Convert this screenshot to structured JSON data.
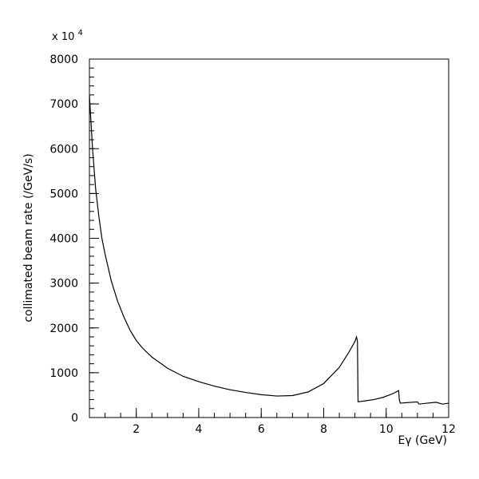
{
  "chart_data": {
    "type": "line",
    "title": "",
    "xlabel": "Eγ (GeV)",
    "ylabel": "collimated beam rate (/GeV/s)",
    "y_multiplier": "x 10",
    "y_multiplier_exponent": "4",
    "xlim": [
      0.5,
      12
    ],
    "ylim": [
      0,
      8000
    ],
    "grid": false,
    "x_ticks": [
      2,
      4,
      6,
      8,
      10,
      12
    ],
    "y_ticks": [
      0,
      1000,
      2000,
      3000,
      4000,
      5000,
      6000,
      7000,
      8000
    ],
    "series": [
      {
        "x": [
          0.5,
          0.6,
          0.7,
          0.8,
          0.9,
          1.0,
          1.2,
          1.4,
          1.6,
          1.8,
          2.0,
          2.2,
          2.5,
          3.0,
          3.5,
          4.0,
          4.5,
          5.0,
          5.5,
          6.0,
          6.5,
          7.0,
          7.5,
          8.0,
          8.5,
          8.8,
          9.0,
          9.05,
          9.08,
          9.1,
          9.3,
          9.6,
          9.9,
          10.2,
          10.4,
          10.42,
          10.45,
          10.8,
          11.0,
          11.05,
          11.3,
          11.6,
          11.8,
          12.0
        ],
        "y": [
          7200,
          6000,
          5100,
          4500,
          4000,
          3650,
          3050,
          2600,
          2250,
          1950,
          1720,
          1550,
          1350,
          1100,
          920,
          800,
          700,
          620,
          560,
          510,
          480,
          490,
          570,
          760,
          1120,
          1450,
          1700,
          1800,
          1700,
          350,
          370,
          400,
          450,
          530,
          600,
          400,
          320,
          340,
          350,
          300,
          320,
          340,
          300,
          320
        ]
      }
    ]
  }
}
